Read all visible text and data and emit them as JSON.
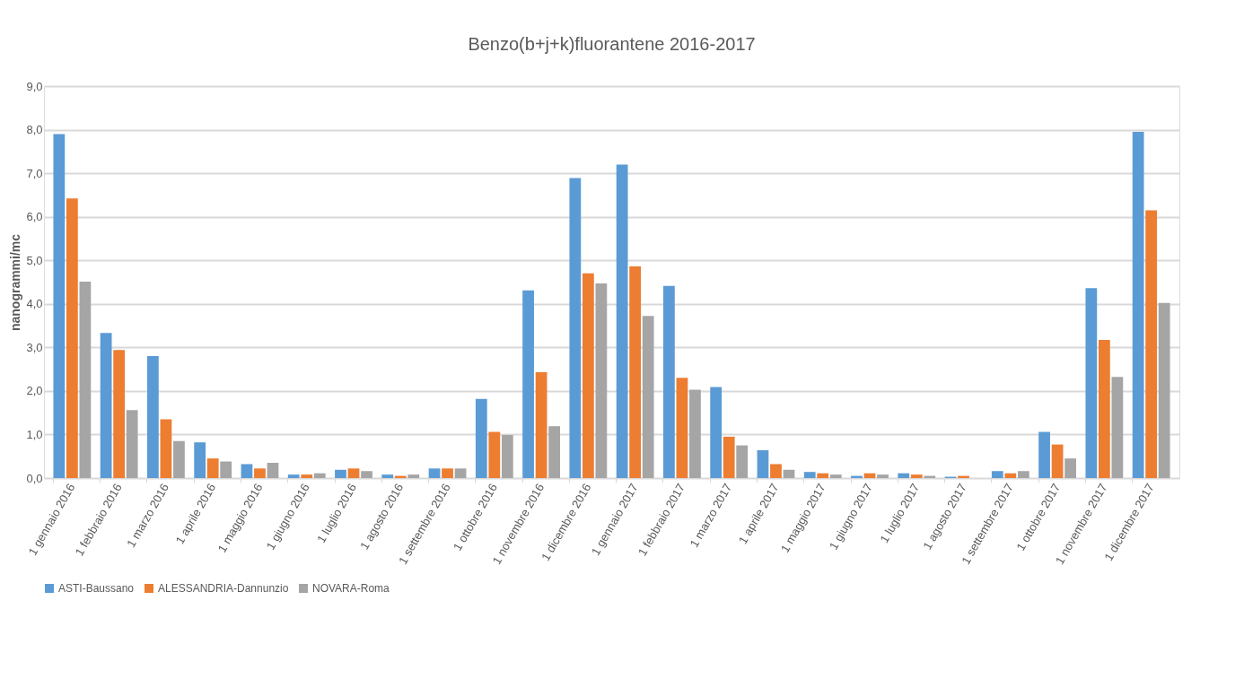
{
  "chart_data": {
    "type": "bar",
    "title": "Benzo(b+j+k)fluorantene  2016-2017",
    "ylabel": "nanogrammi/mc",
    "categories": [
      "1 gennaio 2016",
      "1 febbraio 2016",
      "1 marzo 2016",
      "1 aprile 2016",
      "1 maggio 2016",
      "1 giugno 2016",
      "1 luglio 2016",
      "1 agosto 2016",
      "1 settembre 2016",
      "1 ottobre 2016",
      "1 novembre 2016",
      "1 dicembre 2016",
      "1 gennaio 2017",
      "1 febbraio 2017",
      "1 marzo 2017",
      "1 aprile 2017",
      "1 maggio 2017",
      "1 giugno 2017",
      "1 luglio 2017",
      "1 agosto 2017",
      "1 settembre 2017",
      "1 ottobre 2017",
      "1 novembre 2017",
      "1 dicembre 2017"
    ],
    "series": [
      {
        "name": "ASTI-Baussano",
        "color": "#5b9bd5",
        "values": [
          7.9,
          3.33,
          2.8,
          0.82,
          0.32,
          0.08,
          0.19,
          0.08,
          0.22,
          1.82,
          4.31,
          6.89,
          7.2,
          4.41,
          2.09,
          0.64,
          0.14,
          0.05,
          0.11,
          0.03,
          0.16,
          1.06,
          4.36,
          7.95
        ]
      },
      {
        "name": "ALESSANDRIA-Dannunzio",
        "color": "#ed7d31",
        "values": [
          6.42,
          2.94,
          1.35,
          0.45,
          0.22,
          0.08,
          0.22,
          0.05,
          0.22,
          1.06,
          2.43,
          4.7,
          4.86,
          2.3,
          0.95,
          0.32,
          0.11,
          0.11,
          0.08,
          0.05,
          0.11,
          0.77,
          3.17,
          6.15
        ]
      },
      {
        "name": "NOVARA-Roma",
        "color": "#a5a5a5",
        "values": [
          4.51,
          1.56,
          0.85,
          0.38,
          0.35,
          0.11,
          0.16,
          0.08,
          0.22,
          0.99,
          1.19,
          4.47,
          3.72,
          2.03,
          0.75,
          0.19,
          0.08,
          0.08,
          0.05,
          null,
          0.16,
          0.45,
          2.32,
          4.02
        ]
      }
    ],
    "ylim": [
      0,
      9
    ],
    "yticks": [
      {
        "value": 0,
        "label": "0,0"
      },
      {
        "value": 1,
        "label": "1,0"
      },
      {
        "value": 2,
        "label": "2,0"
      },
      {
        "value": 3,
        "label": "3,0"
      },
      {
        "value": 4,
        "label": "4,0"
      },
      {
        "value": 5,
        "label": "5,0"
      },
      {
        "value": 6,
        "label": "6,0"
      },
      {
        "value": 7,
        "label": "7,0"
      },
      {
        "value": 8,
        "label": "8,0"
      },
      {
        "value": 9,
        "label": "9,0"
      }
    ],
    "grid": "y",
    "legend": "bottom"
  }
}
